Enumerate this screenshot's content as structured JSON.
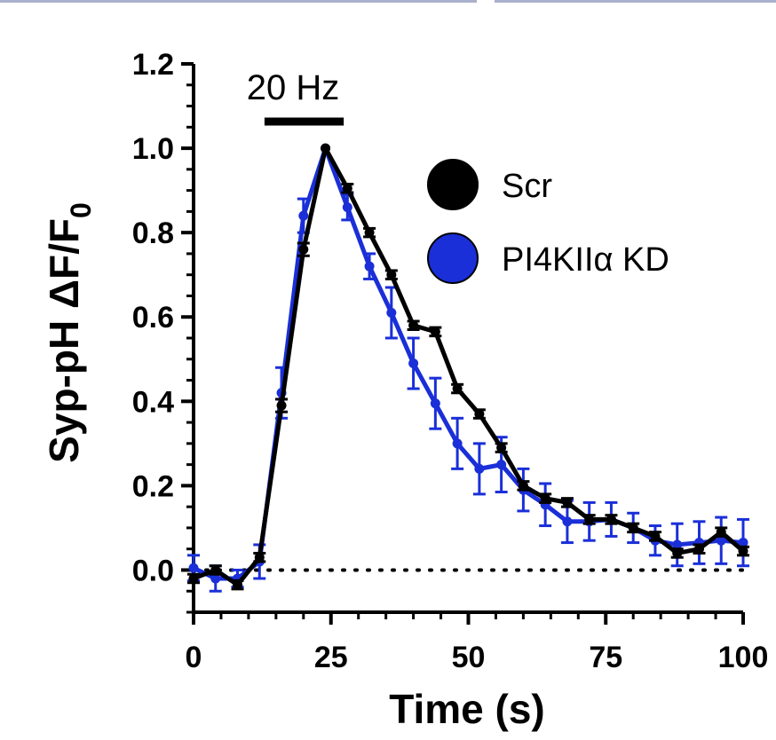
{
  "chart_data": {
    "type": "line",
    "xlabel": "Time (s)",
    "ylabel": "Syp-pH ΔF/F",
    "ylabel_subscript": "0",
    "xlim": [
      0,
      100
    ],
    "ylim": [
      -0.1,
      1.2
    ],
    "x_ticks": [
      0,
      25,
      50,
      75,
      100
    ],
    "x_tick_labels": [
      "0",
      "25",
      "50",
      "75",
      "100"
    ],
    "y_ticks": [
      0.0,
      0.2,
      0.4,
      0.6,
      0.8,
      1.0,
      1.2
    ],
    "y_tick_labels": [
      "0.0",
      "0.2",
      "0.4",
      "0.6",
      "0.8",
      "1.0",
      "1.2"
    ],
    "baseline": 0,
    "stimulus": {
      "label": "20 Hz",
      "start": 10,
      "end": 27
    },
    "legend_position": "top-right",
    "series": [
      {
        "name": "Scr",
        "color": "#000000",
        "x": [
          0,
          4,
          8,
          12,
          16,
          20,
          24,
          28,
          32,
          36,
          40,
          44,
          48,
          52,
          56,
          60,
          64,
          68,
          72,
          76,
          80,
          84,
          88,
          92,
          96,
          100
        ],
        "values": [
          -0.02,
          0.0,
          -0.035,
          0.03,
          0.39,
          0.76,
          1.0,
          0.905,
          0.8,
          0.7,
          0.58,
          0.565,
          0.43,
          0.37,
          0.29,
          0.2,
          0.17,
          0.16,
          0.12,
          0.12,
          0.1,
          0.08,
          0.04,
          0.05,
          0.09,
          0.045
        ],
        "errors": [
          0.01,
          0.01,
          0.01,
          0.01,
          0.015,
          0.015,
          0,
          0.01,
          0.01,
          0.01,
          0.01,
          0.01,
          0.01,
          0.01,
          0.01,
          0.01,
          0.01,
          0.01,
          0.01,
          0.01,
          0.01,
          0.01,
          0.01,
          0.01,
          0.01,
          0.01
        ]
      },
      {
        "name": "PI4KIIα KD",
        "color": "#1a2fd8",
        "x": [
          0,
          4,
          8,
          12,
          16,
          20,
          24,
          28,
          32,
          36,
          40,
          44,
          48,
          52,
          56,
          60,
          64,
          68,
          72,
          76,
          80,
          84,
          88,
          92,
          96,
          100
        ],
        "values": [
          0.005,
          -0.02,
          -0.02,
          0.02,
          0.42,
          0.84,
          1.0,
          0.86,
          0.72,
          0.61,
          0.49,
          0.395,
          0.3,
          0.24,
          0.25,
          0.19,
          0.155,
          0.115,
          0.115,
          0.12,
          0.1,
          0.07,
          0.06,
          0.065,
          0.07,
          0.065
        ],
        "errors": [
          0.03,
          0.03,
          0.02,
          0.04,
          0.06,
          0.04,
          0,
          0.03,
          0.03,
          0.06,
          0.06,
          0.06,
          0.06,
          0.06,
          0.065,
          0.05,
          0.05,
          0.05,
          0.045,
          0.04,
          0.035,
          0.035,
          0.05,
          0.05,
          0.055,
          0.055
        ]
      }
    ]
  }
}
